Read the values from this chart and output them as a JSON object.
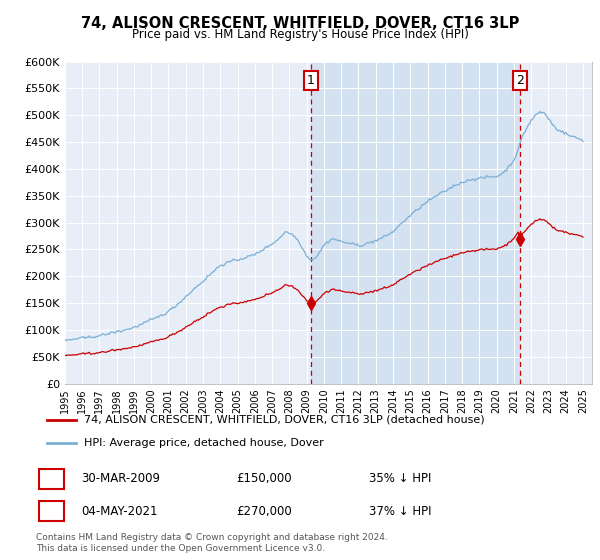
{
  "title": "74, ALISON CRESCENT, WHITFIELD, DOVER, CT16 3LP",
  "subtitle": "Price paid vs. HM Land Registry's House Price Index (HPI)",
  "background_color": "#ffffff",
  "plot_bg_color": "#e8eef8",
  "ylim": [
    0,
    600000
  ],
  "yticks": [
    0,
    50000,
    100000,
    150000,
    200000,
    250000,
    300000,
    350000,
    400000,
    450000,
    500000,
    550000,
    600000
  ],
  "ytick_labels": [
    "£0",
    "£50K",
    "£100K",
    "£150K",
    "£200K",
    "£250K",
    "£300K",
    "£350K",
    "£400K",
    "£450K",
    "£500K",
    "£550K",
    "£600K"
  ],
  "x_start_year": 1995,
  "x_end_year": 2025,
  "xtick_years": [
    1995,
    1996,
    1997,
    1998,
    1999,
    2000,
    2001,
    2002,
    2003,
    2004,
    2005,
    2006,
    2007,
    2008,
    2009,
    2010,
    2011,
    2012,
    2013,
    2014,
    2015,
    2016,
    2017,
    2018,
    2019,
    2020,
    2021,
    2022,
    2023,
    2024,
    2025
  ],
  "sale1_x": 2009.25,
  "sale1_price": 150000,
  "sale2_x": 2021.33,
  "sale2_price": 270000,
  "legend_line1": "74, ALISON CRESCENT, WHITFIELD, DOVER, CT16 3LP (detached house)",
  "legend_line2": "HPI: Average price, detached house, Dover",
  "note1_date": "30-MAR-2009",
  "note1_price": "£150,000",
  "note1_pct": "35% ↓ HPI",
  "note2_date": "04-MAY-2021",
  "note2_price": "£270,000",
  "note2_pct": "37% ↓ HPI",
  "footer": "Contains HM Land Registry data © Crown copyright and database right 2024.\nThis data is licensed under the Open Government Licence v3.0.",
  "hpi_color": "#7bafd4",
  "sale_color": "#cc0000",
  "vline_color": "#cc0000",
  "shade_color": "#d0dff0",
  "grid_color": "#cccccc",
  "spine_color": "#aaaaaa"
}
